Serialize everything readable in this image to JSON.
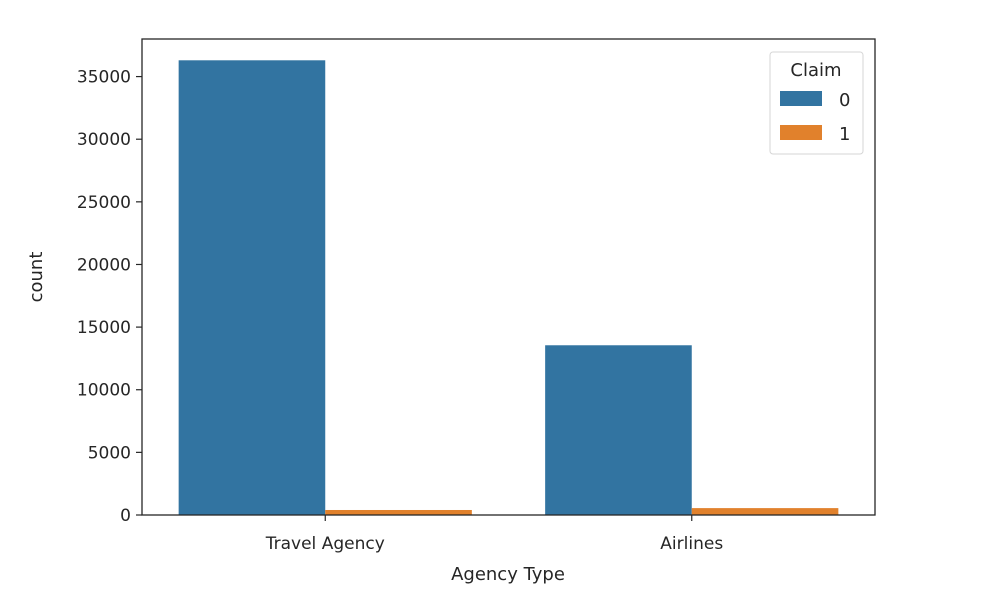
{
  "chart_data": {
    "type": "bar",
    "categories": [
      "Travel Agency",
      "Airlines"
    ],
    "series": [
      {
        "name": "0",
        "values": [
          36300,
          13550
        ],
        "color": "#3274a1"
      },
      {
        "name": "1",
        "values": [
          400,
          550
        ],
        "color": "#e1812c"
      }
    ],
    "xlabel": "Agency Type",
    "ylabel": "count",
    "ylim": [
      0,
      38000
    ],
    "yticks": [
      0,
      5000,
      10000,
      15000,
      20000,
      25000,
      30000,
      35000
    ],
    "grid": false,
    "legend": {
      "title": "Claim",
      "position": "top-right"
    }
  }
}
